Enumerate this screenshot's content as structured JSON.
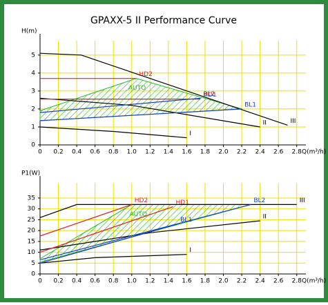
{
  "title": "GPAXX-5 II Performance Curve",
  "chart_data": [
    {
      "type": "line",
      "ylabel": "H(m)",
      "xlabel": "Q(m³/h)",
      "xlim": [
        0,
        2.9
      ],
      "ylim": [
        0,
        5.8
      ],
      "xticks": [
        0,
        0.2,
        0.4,
        0.6,
        0.8,
        {
          "value": 1,
          "label": "1.0"
        },
        1.2,
        1.4,
        1.6,
        1.8,
        {
          "value": 2,
          "label": "2.0"
        },
        2.2,
        2.4,
        2.6,
        2.8
      ],
      "yticks": [
        0,
        1,
        2,
        3,
        4,
        5
      ],
      "grid": true,
      "grid_color": "#ece000",
      "series": [
        {
          "name": "AUTO",
          "color": "#22b822",
          "fill": "hatch",
          "x": [
            0,
            1.05,
            2.2,
            0
          ],
          "values": [
            1.9,
            3.7,
            2.0,
            1.35
          ]
        },
        {
          "name": "III",
          "color": "#000000",
          "x": [
            0,
            0.45,
            2.7
          ],
          "values": [
            5.1,
            5.0,
            1.1
          ]
        },
        {
          "name": "II",
          "color": "#000000",
          "x": [
            0,
            1.0,
            2.4
          ],
          "values": [
            2.6,
            2.2,
            1.0
          ]
        },
        {
          "name": "I",
          "color": "#000000",
          "x": [
            0,
            0.8,
            1.6
          ],
          "values": [
            1.0,
            0.75,
            0.4
          ]
        },
        {
          "name": "HD2",
          "color": "#e02020",
          "x": [
            0,
            1.05
          ],
          "values": [
            3.7,
            3.7
          ]
        },
        {
          "name": "HD1",
          "color": "#e02020",
          "x": [
            0,
            1.75
          ],
          "values": [
            2.55,
            2.55
          ]
        },
        {
          "name": "BL2",
          "color": "#1a3ccc",
          "x": [
            0,
            1.75
          ],
          "values": [
            1.8,
            2.6
          ]
        },
        {
          "name": "BL1",
          "color": "#1a3ccc",
          "x": [
            0,
            2.2
          ],
          "values": [
            1.35,
            2.0
          ]
        }
      ]
    },
    {
      "type": "line",
      "ylabel": "P1(W)",
      "xlabel": "Q(m³/h)",
      "xlim": [
        0,
        2.9
      ],
      "ylim": [
        0,
        42
      ],
      "xticks": [
        0,
        0.2,
        0.4,
        0.6,
        0.8,
        {
          "value": 1,
          "label": "1.0"
        },
        1.2,
        1.4,
        1.6,
        1.8,
        {
          "value": 2,
          "label": "2.0"
        },
        2.2,
        2.4,
        2.6,
        2.8
      ],
      "yticks": [
        0,
        5,
        10,
        15,
        20,
        25,
        30,
        35
      ],
      "grid": true,
      "grid_color": "#ece000",
      "series": [
        {
          "name": "AUTO",
          "color": "#22b822",
          "fill": "hatch",
          "x": [
            0,
            1.0,
            2.3,
            0
          ],
          "values": [
            7,
            32,
            32,
            5.5
          ]
        },
        {
          "name": "III",
          "color": "#000000",
          "x": [
            0,
            0.4,
            2.8
          ],
          "values": [
            26,
            32,
            32
          ]
        },
        {
          "name": "II",
          "color": "#000000",
          "x": [
            0,
            1.2,
            2.4
          ],
          "values": [
            11,
            19,
            24.5
          ]
        },
        {
          "name": "I",
          "color": "#000000",
          "x": [
            0,
            0.6,
            1.6
          ],
          "values": [
            5,
            7.5,
            9
          ]
        },
        {
          "name": "HD2",
          "color": "#e02020",
          "x": [
            0,
            1.0
          ],
          "values": [
            17.5,
            32
          ]
        },
        {
          "name": "HD1",
          "color": "#e02020",
          "x": [
            0,
            1.45
          ],
          "values": [
            10,
            31
          ]
        },
        {
          "name": "BL2",
          "color": "#1a3ccc",
          "x": [
            0,
            2.3
          ],
          "values": [
            6.5,
            32
          ]
        },
        {
          "name": "BL1",
          "color": "#1a3ccc",
          "x": [
            0,
            1.5
          ],
          "values": [
            5,
            23
          ]
        }
      ]
    }
  ]
}
